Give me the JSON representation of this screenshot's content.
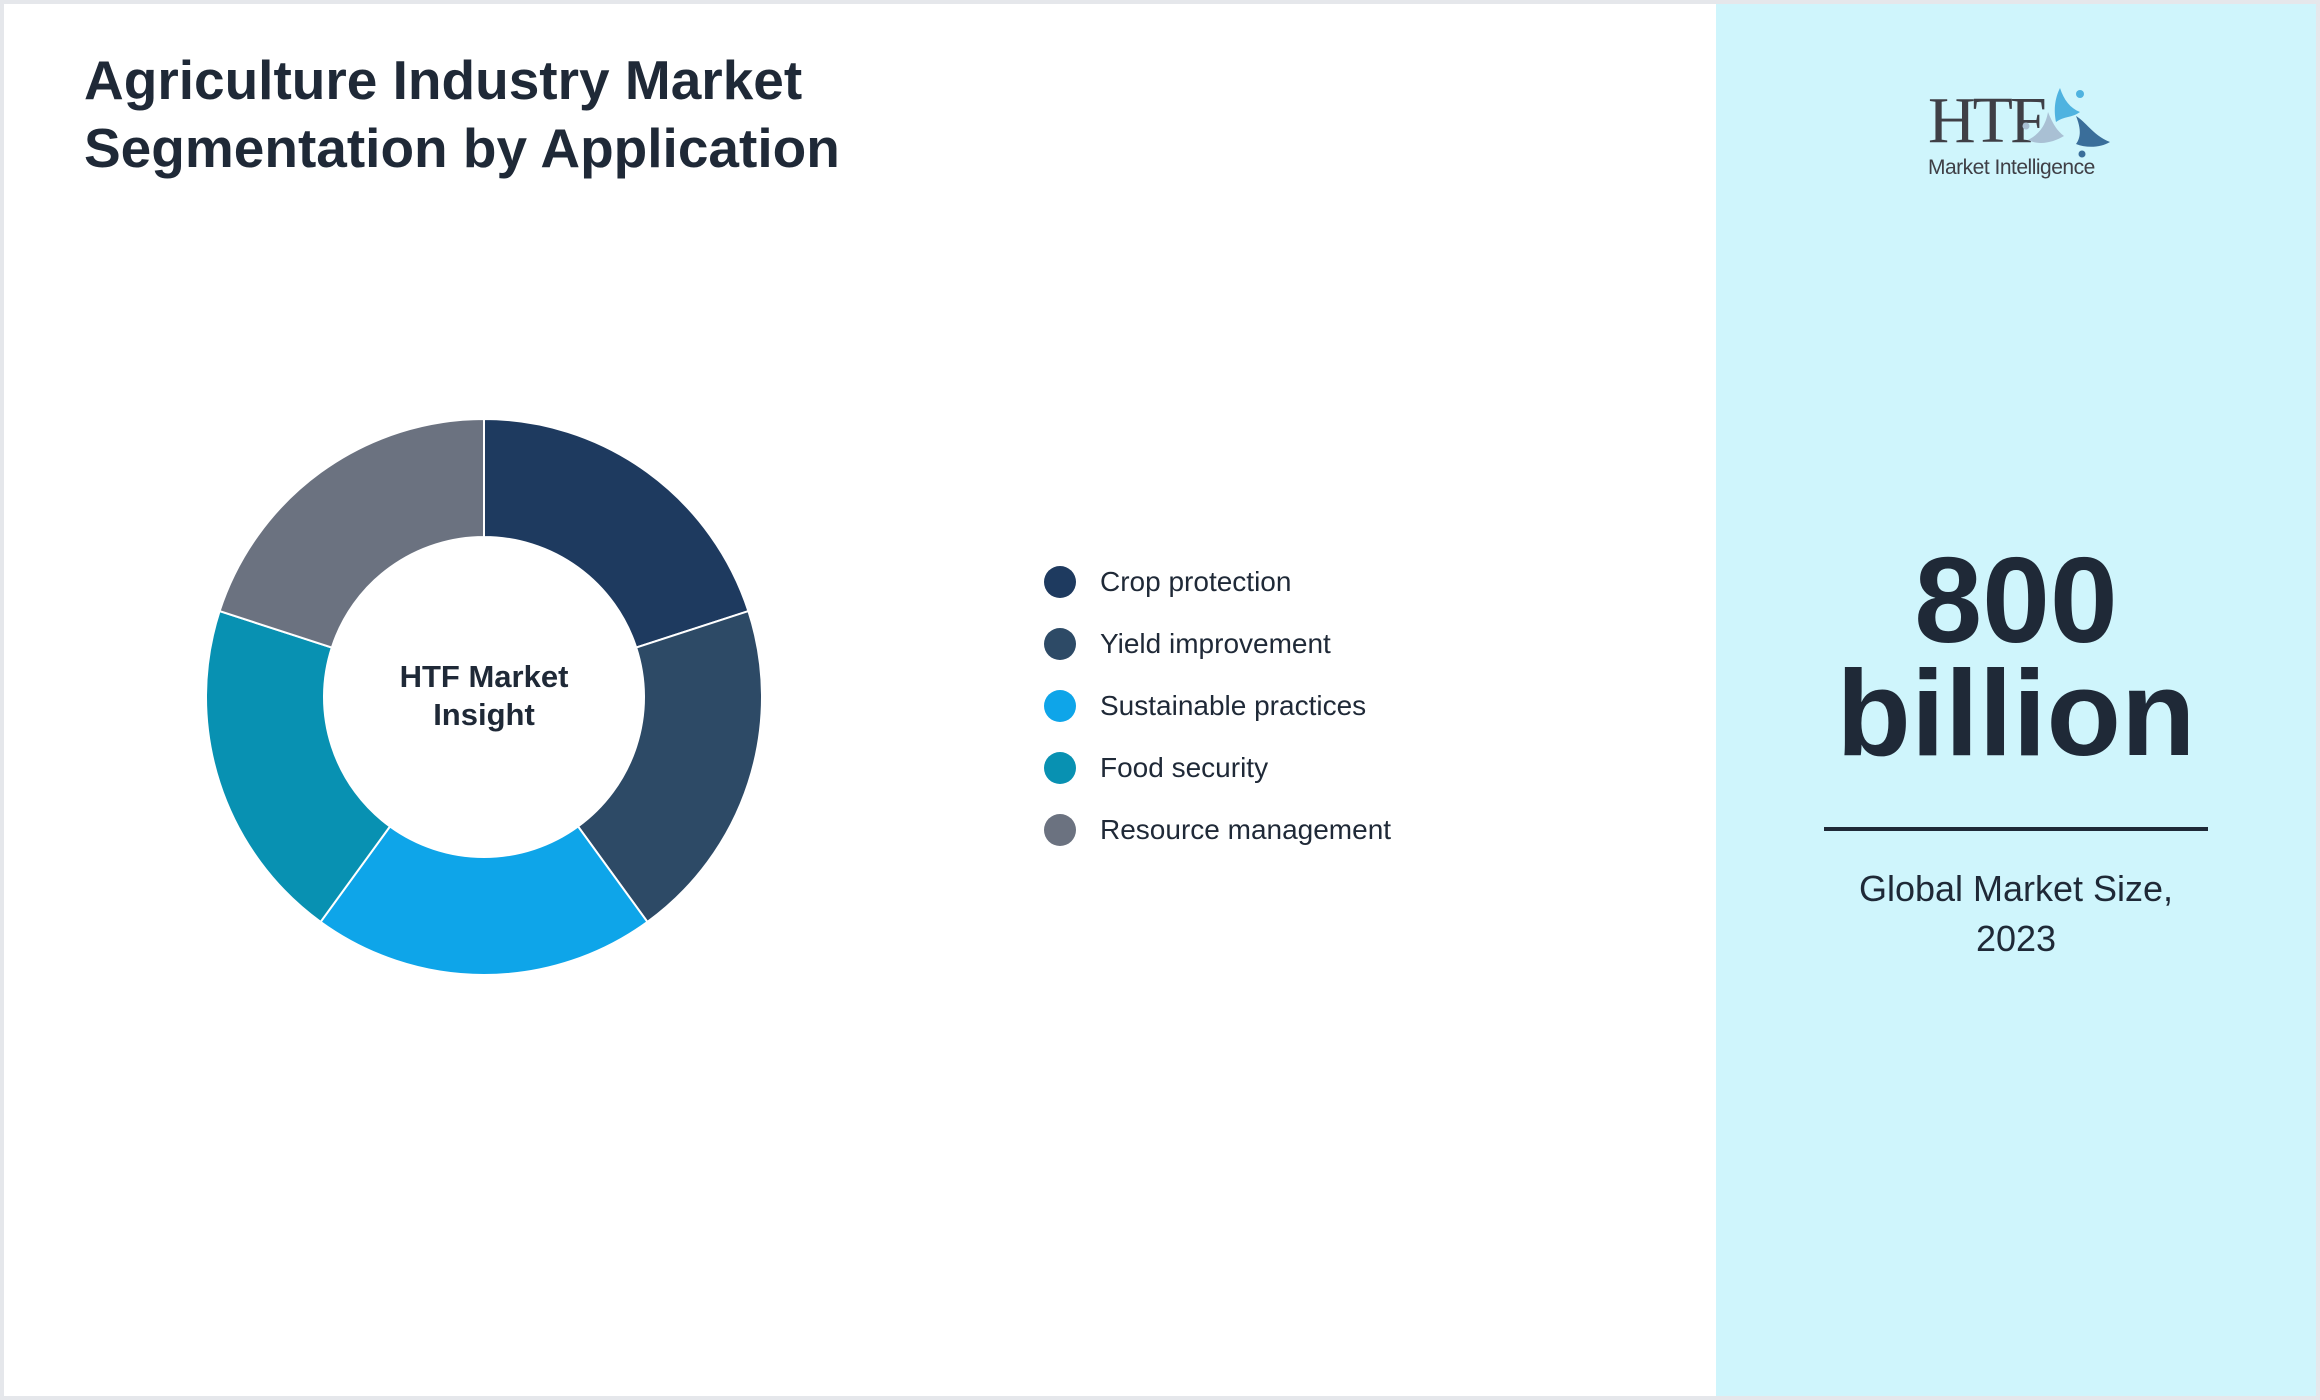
{
  "header": {
    "title": "Agriculture Industry Market Segmentation by Application"
  },
  "chart_center_label": "HTF Market Insight",
  "legend": {
    "items": [
      {
        "label": "Crop protection",
        "color": "#1e3a5f"
      },
      {
        "label": "Yield improvement",
        "color": "#2d4a66"
      },
      {
        "label": "Sustainable practices",
        "color": "#0ea5e9"
      },
      {
        "label": "Food security",
        "color": "#0891b2"
      },
      {
        "label": "Resource management",
        "color": "#6b7280"
      }
    ]
  },
  "side_panel": {
    "logo": {
      "mark": "HTF",
      "subtitle": "Market Intelligence",
      "icon": "people-circle-icon"
    },
    "market_size_value": "800 billion",
    "market_size_caption": "Global Market Size, 2023",
    "background_color": "#cff5fc"
  },
  "chart_data": {
    "type": "pie",
    "variant": "donut",
    "title": "Agriculture Industry Market Segmentation by Application",
    "center_label": "HTF Market Insight",
    "categories": [
      "Crop protection",
      "Yield improvement",
      "Sustainable practices",
      "Food security",
      "Resource management"
    ],
    "values": [
      20,
      20,
      20,
      20,
      20
    ],
    "colors": [
      "#1e3a5f",
      "#2d4a66",
      "#0ea5e9",
      "#0891b2",
      "#6b7280"
    ],
    "start_angle": "top, clockwise",
    "legend_position": "right"
  }
}
